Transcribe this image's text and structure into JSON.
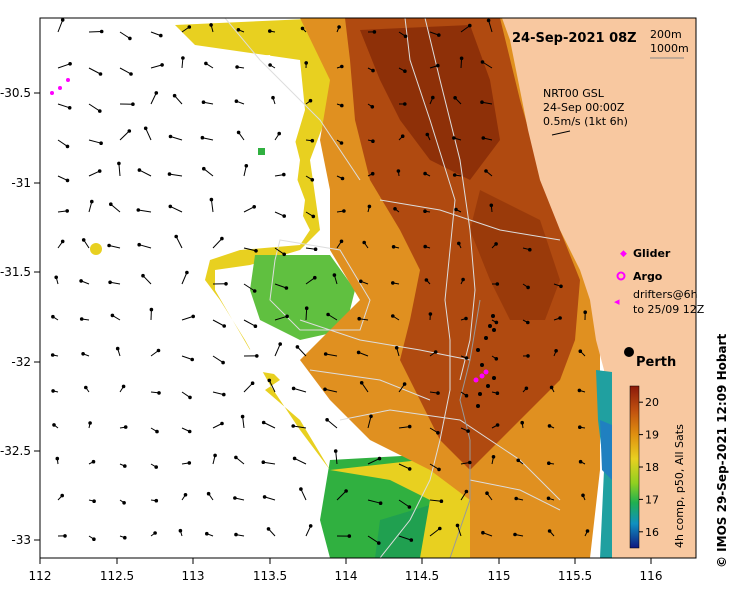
{
  "title": "24-Sep-2021 08Z",
  "isobath_legend": [
    "200m",
    "1000m"
  ],
  "current_note": [
    "NRT00 GSL",
    "24-Sep 00:00Z",
    "0.5m/s (1kt 6h)"
  ],
  "legend": {
    "glider": "Glider",
    "argo": "Argo",
    "drifters": [
      "drifters@6h",
      "to 25/09 12Z"
    ]
  },
  "city": "Perth",
  "colorbar": {
    "ticks": [
      "20",
      "19",
      "18",
      "17",
      "16"
    ],
    "caption": "4h comp, p50, All Sats",
    "min": 15.5,
    "max": 20.5
  },
  "credit": "© IMOS 29-Sep-2021 12:09 Hobart",
  "x_ticks": [
    "112",
    "112.5",
    "113",
    "113.5",
    "114",
    "114.5",
    "115",
    "115.5",
    "116"
  ],
  "y_ticks": [
    "-30.5",
    "-31",
    "-31.5",
    "-32",
    "-32.5",
    "-33"
  ],
  "colors": {
    "land": "#F8C8A0",
    "sst_warm": "#A0400A",
    "sst_mid": "#E0A020",
    "sst_cool": "#30B040",
    "glider": "#FF00FF",
    "isobath": "#DDDDDD"
  }
}
